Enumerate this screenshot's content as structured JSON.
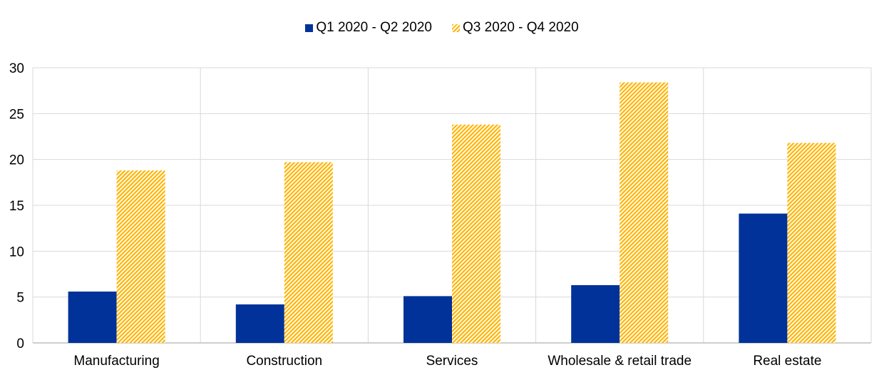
{
  "chart_data": {
    "type": "bar",
    "title": "",
    "xlabel": "",
    "ylabel": "",
    "ylim": [
      0,
      30
    ],
    "yticks": [
      0,
      5,
      10,
      15,
      20,
      25,
      30
    ],
    "grid": true,
    "legend_position": "top-center",
    "categories": [
      "Manufacturing",
      "Construction",
      "Services",
      "Wholesale & retail trade",
      "Real estate"
    ],
    "series": [
      {
        "name": "Q1 2020 - Q2 2020",
        "color": "#003299",
        "pattern": "solid",
        "values": [
          5.6,
          4.2,
          5.1,
          6.3,
          14.1
        ]
      },
      {
        "name": "Q3 2020 - Q4 2020",
        "color": "#FFB400",
        "pattern": "hatched",
        "values": [
          18.8,
          19.7,
          23.8,
          28.4,
          21.8
        ]
      }
    ]
  }
}
